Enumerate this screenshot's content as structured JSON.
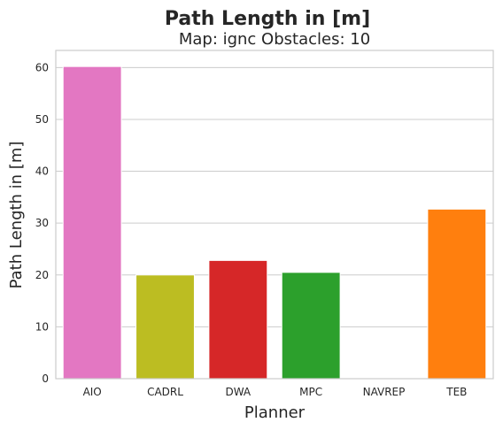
{
  "chart_data": {
    "type": "bar",
    "title": "Path Length in [m]",
    "subtitle": "Map: ignc Obstacles: 10",
    "xlabel": "Planner",
    "ylabel": "Path Length in [m]",
    "categories": [
      "AIO",
      "CADRL",
      "DWA",
      "MPC",
      "NAVREP",
      "TEB"
    ],
    "values": [
      60.2,
      20.0,
      22.8,
      20.5,
      0,
      32.7
    ],
    "colors": [
      "#e377c2",
      "#bcbd22",
      "#d62728",
      "#2ca02c",
      "#8c564b",
      "#ff7f0e"
    ],
    "ylim": [
      0,
      63.3
    ],
    "yticks": [
      0,
      10,
      20,
      30,
      40,
      50,
      60
    ],
    "grid": "horizontal",
    "legend": "none"
  }
}
